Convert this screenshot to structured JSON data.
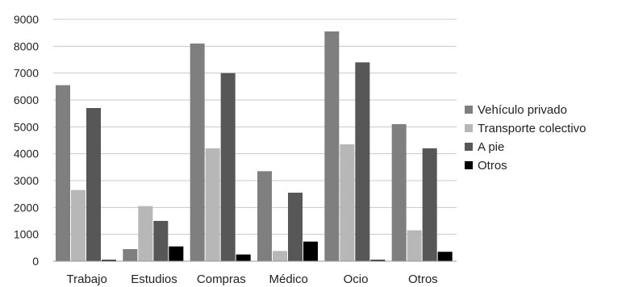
{
  "chart_data": {
    "type": "bar",
    "categories": [
      "Trabajo",
      "Estudios",
      "Compras",
      "Médico",
      "Ocio",
      "Otros"
    ],
    "series": [
      {
        "name": "Vehículo privado",
        "values": [
          6550,
          450,
          8100,
          3350,
          8550,
          5100
        ],
        "color": "#7f7f7f"
      },
      {
        "name": "Transporte colectivo",
        "values": [
          2650,
          2050,
          4200,
          380,
          4350,
          1150
        ],
        "color": "#b7b7b7"
      },
      {
        "name": "A pie",
        "values": [
          5700,
          1500,
          7000,
          2550,
          7400,
          4200
        ],
        "color": "#575757"
      },
      {
        "name": "Otros",
        "values": [
          50,
          550,
          250,
          730,
          50,
          350
        ],
        "color": "#000000"
      }
    ],
    "yticks": [
      "0",
      "1000",
      "2000",
      "3000",
      "4000",
      "5000",
      "6000",
      "7000",
      "8000",
      "9000"
    ],
    "ylim": [
      0,
      9000
    ],
    "grid": true,
    "legend_position": "right"
  }
}
